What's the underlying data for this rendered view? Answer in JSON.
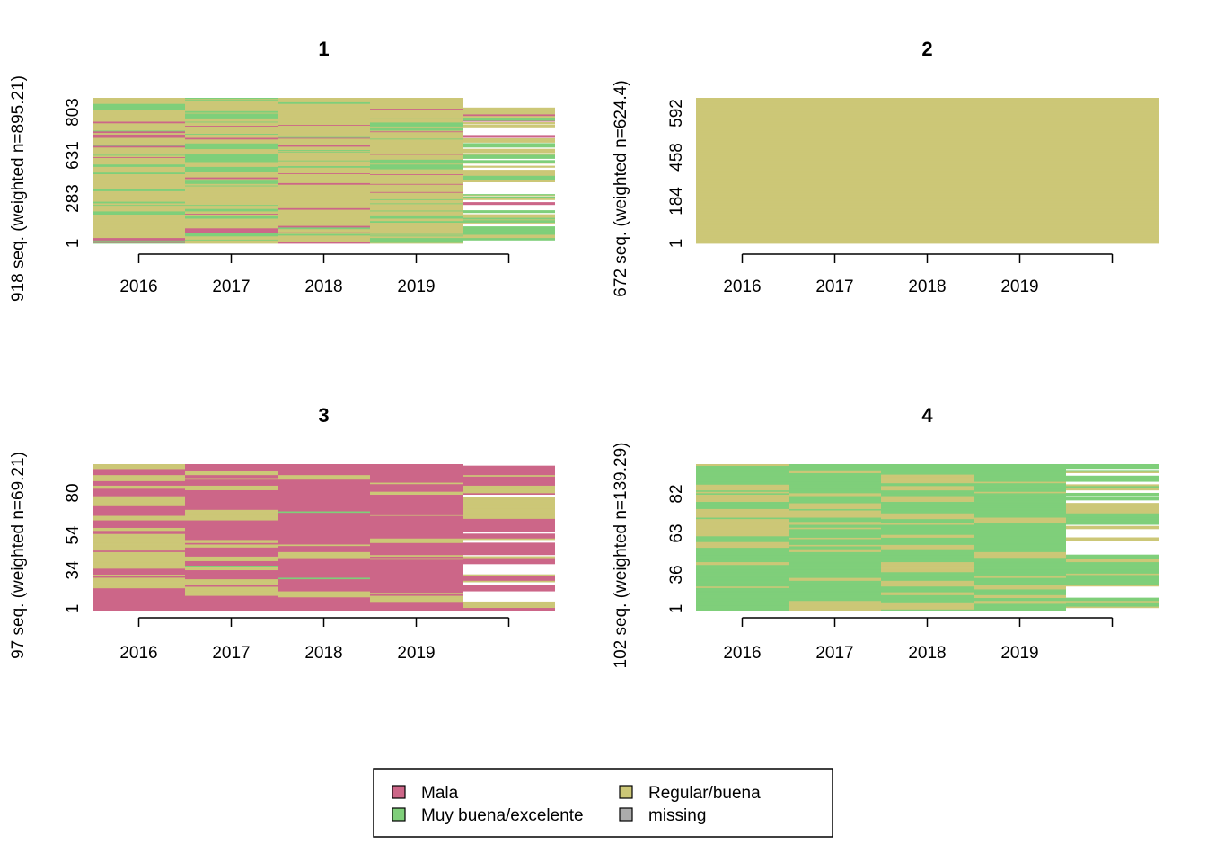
{
  "colors": {
    "Mala": "#CC6688",
    "Muy buena/excelente": "#7FCF7A",
    "Regular/buena": "#CCC777",
    "missing": "#ABABAB",
    "background": "#FFFFFF"
  },
  "chart_data": [
    {
      "type": "heatmap",
      "title": "1",
      "ylabel": "918 seq. (weighted n=895.21)",
      "x_ticks": [
        "2016",
        "2017",
        "2018",
        "2019"
      ],
      "y_ticks": [
        "1",
        "283",
        "631",
        "803"
      ],
      "n_sequences": 918,
      "columns": [
        {
          "label": "2016",
          "shares": {
            "Mala": 0.1,
            "Muy buena/excelente": 0.25,
            "Regular/buena": 0.65,
            "missing": 0.0
          }
        },
        {
          "label": "2017",
          "shares": {
            "Mala": 0.08,
            "Muy buena/excelente": 0.27,
            "Regular/buena": 0.65,
            "missing": 0.0
          }
        },
        {
          "label": "2018",
          "shares": {
            "Mala": 0.08,
            "Muy buena/excelente": 0.12,
            "Regular/buena": 0.8,
            "missing": 0.0
          }
        },
        {
          "label": "2019",
          "shares": {
            "Mala": 0.08,
            "Muy buena/excelente": 0.17,
            "Regular/buena": 0.75,
            "missing": 0.0
          }
        },
        {
          "label": "",
          "shares": {
            "Mala": 0.04,
            "Muy buena/excelente": 0.2,
            "Regular/buena": 0.36,
            "empty": 0.4
          }
        }
      ]
    },
    {
      "type": "heatmap",
      "title": "2",
      "ylabel": "672 seq. (weighted n=624.4)",
      "x_ticks": [
        "2016",
        "2017",
        "2018",
        "2019"
      ],
      "y_ticks": [
        "1",
        "184",
        "458",
        "592"
      ],
      "n_sequences": 672,
      "columns": [
        {
          "label": "2016",
          "shares": {
            "Regular/buena": 1.0
          }
        },
        {
          "label": "2017",
          "shares": {
            "Regular/buena": 1.0
          }
        },
        {
          "label": "2018",
          "shares": {
            "Regular/buena": 1.0
          }
        },
        {
          "label": "2019",
          "shares": {
            "Regular/buena": 1.0
          }
        },
        {
          "label": "",
          "shares": {
            "Regular/buena": 1.0
          }
        }
      ]
    },
    {
      "type": "heatmap",
      "title": "3",
      "ylabel": "97 seq. (weighted n=69.21)",
      "x_ticks": [
        "2016",
        "2017",
        "2018",
        "2019"
      ],
      "y_ticks": [
        "1",
        "34",
        "54",
        "80"
      ],
      "n_sequences": 97,
      "columns": [
        {
          "label": "2016",
          "shares": {
            "Mala": 0.6,
            "Regular/buena": 0.4
          }
        },
        {
          "label": "2017",
          "shares": {
            "Mala": 0.7,
            "Muy buena/excelente": 0.02,
            "Regular/buena": 0.28
          }
        },
        {
          "label": "2018",
          "shares": {
            "Mala": 0.9,
            "Muy buena/excelente": 0.04,
            "Regular/buena": 0.06
          }
        },
        {
          "label": "2019",
          "shares": {
            "Mala": 0.75,
            "Regular/buena": 0.25
          }
        },
        {
          "label": "",
          "shares": {
            "Mala": 0.45,
            "Regular/buena": 0.3,
            "empty": 0.25
          }
        }
      ]
    },
    {
      "type": "heatmap",
      "title": "4",
      "ylabel": "102 seq. (weighted n=139.29)",
      "x_ticks": [
        "2016",
        "2017",
        "2018",
        "2019"
      ],
      "y_ticks": [
        "1",
        "36",
        "63",
        "82"
      ],
      "n_sequences": 102,
      "columns": [
        {
          "label": "2016",
          "shares": {
            "Muy buena/excelente": 0.7,
            "Regular/buena": 0.3
          }
        },
        {
          "label": "2017",
          "shares": {
            "Muy buena/excelente": 0.75,
            "Regular/buena": 0.25
          }
        },
        {
          "label": "2018",
          "shares": {
            "Muy buena/excelente": 0.72,
            "Regular/buena": 0.28
          }
        },
        {
          "label": "2019",
          "shares": {
            "Muy buena/excelente": 0.82,
            "Regular/buena": 0.18
          }
        },
        {
          "label": "",
          "shares": {
            "Muy buena/excelente": 0.5,
            "Regular/buena": 0.3,
            "empty": 0.2
          }
        }
      ]
    }
  ],
  "legend": {
    "items": [
      {
        "label": "Mala",
        "key": "Mala"
      },
      {
        "label": "Regular/buena",
        "key": "Regular/buena"
      },
      {
        "label": "Muy buena/excelente",
        "key": "Muy buena/excelente"
      },
      {
        "label": "missing",
        "key": "missing"
      }
    ]
  }
}
